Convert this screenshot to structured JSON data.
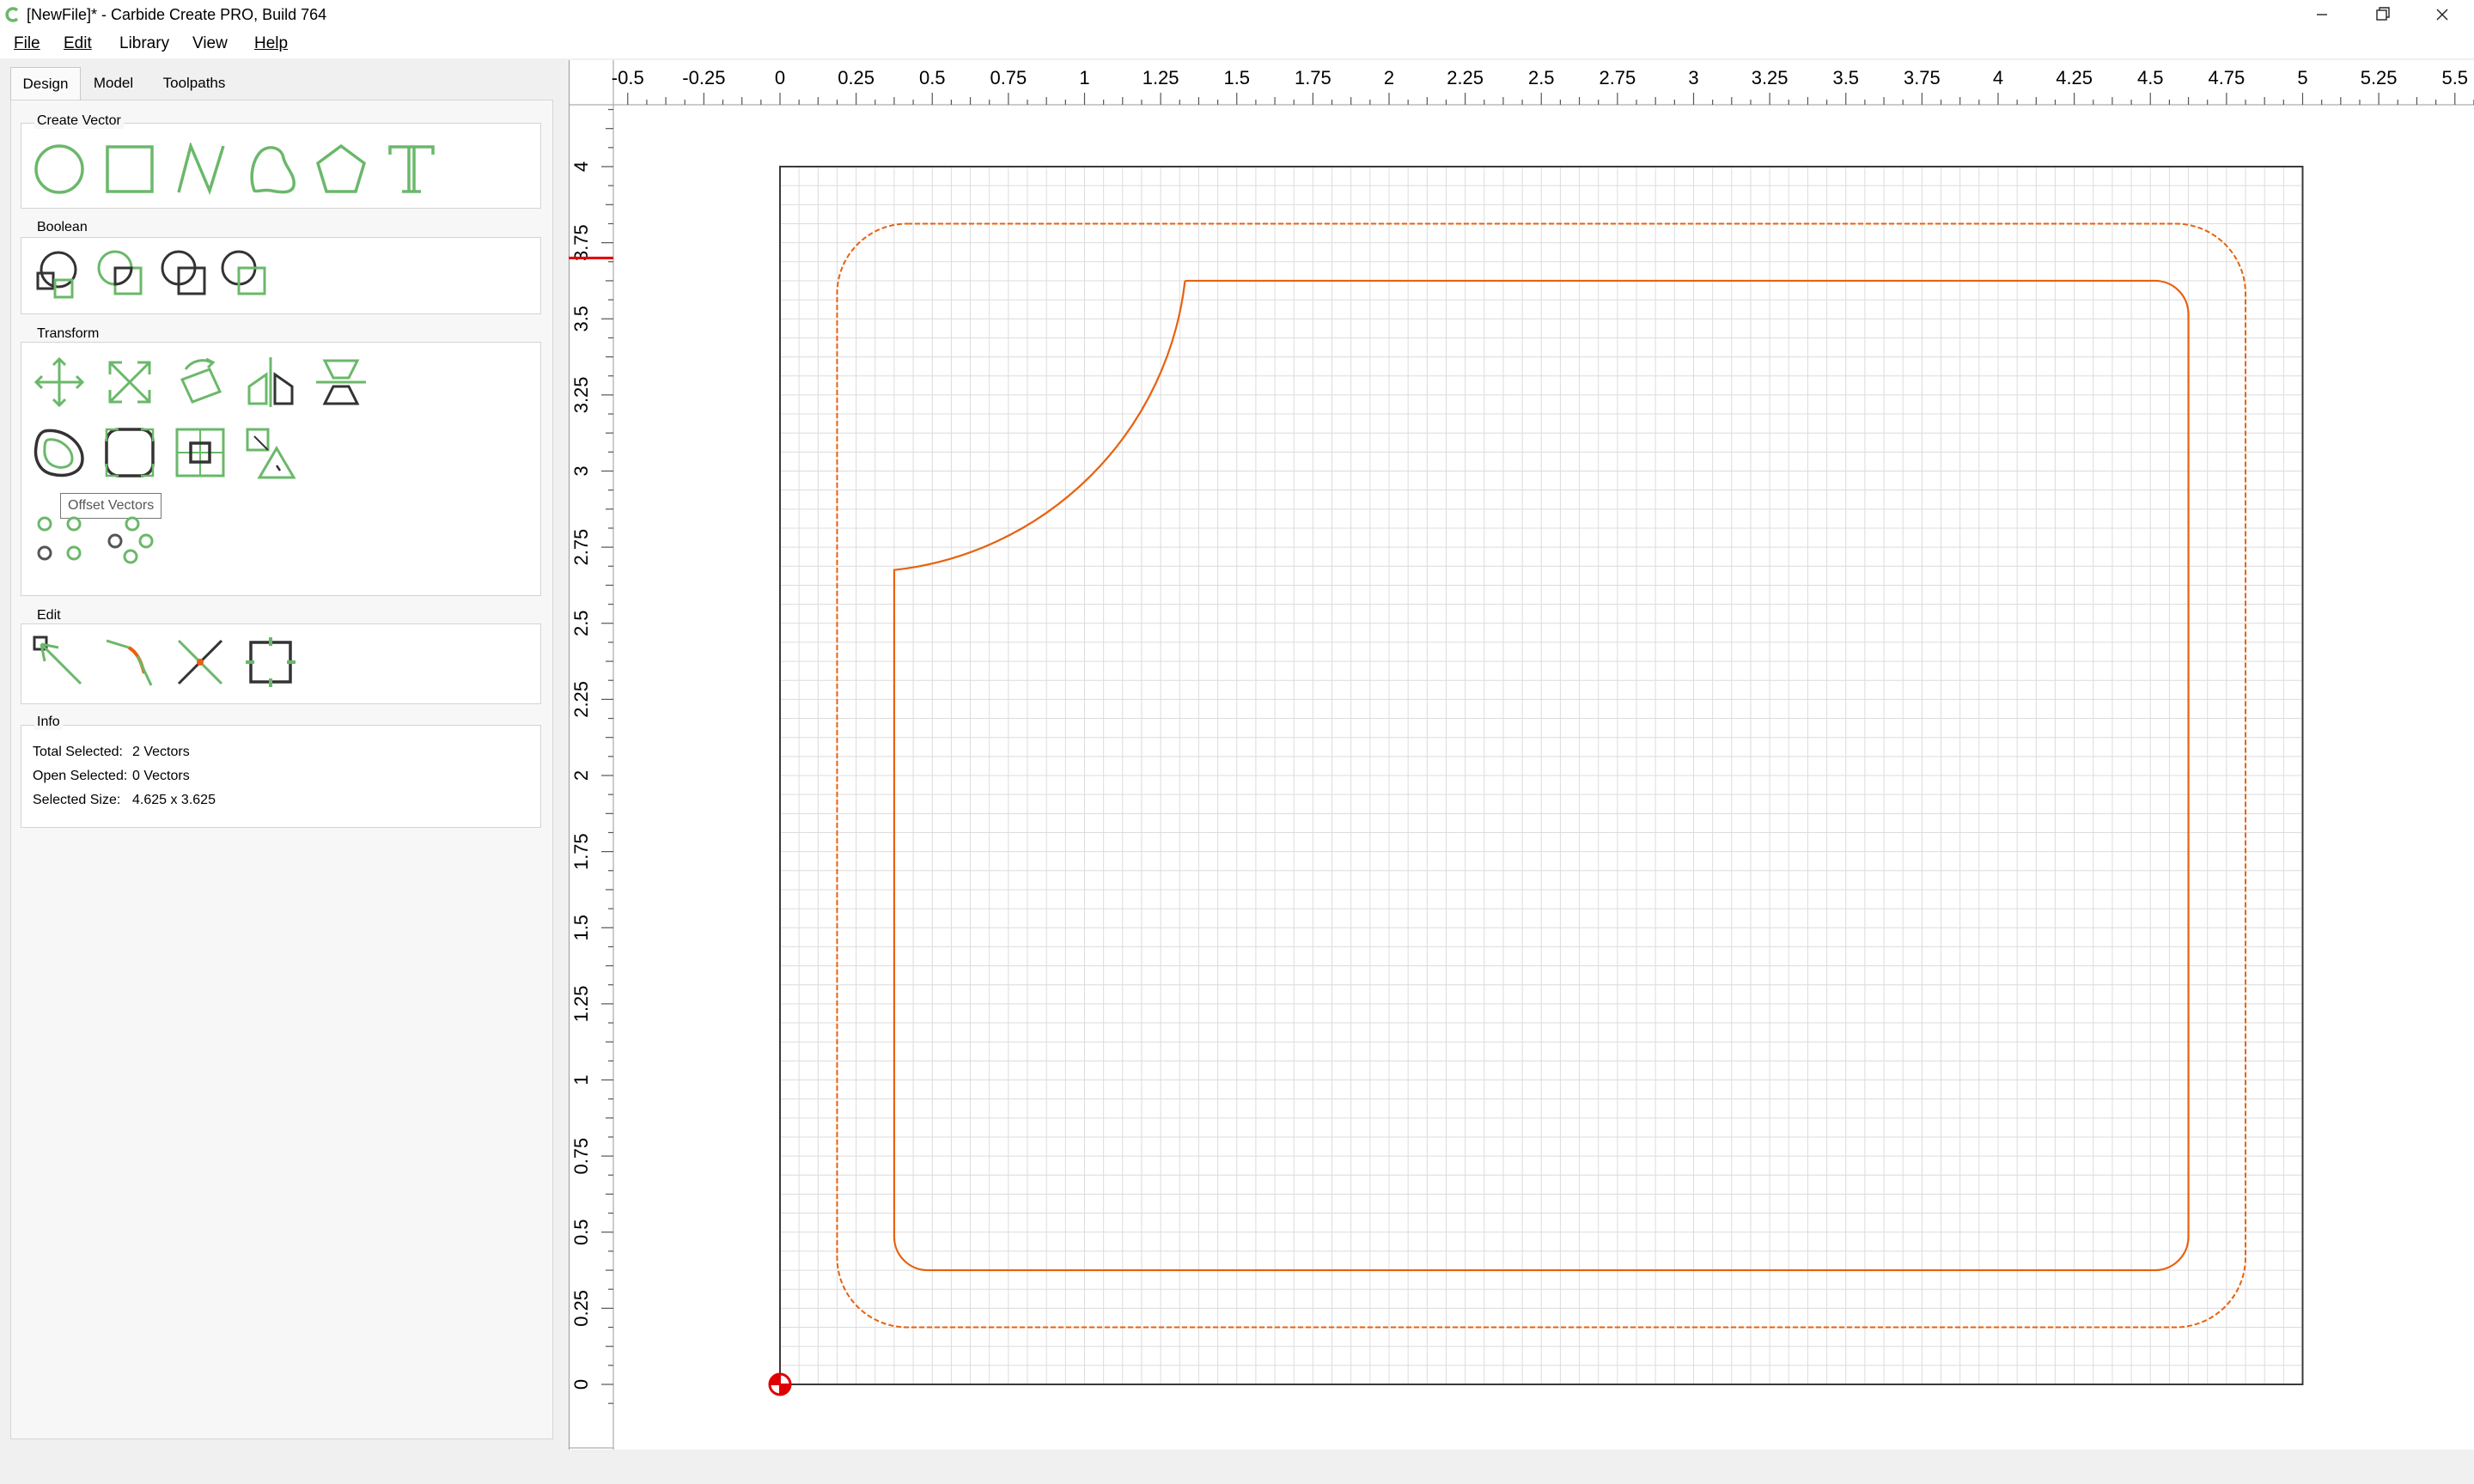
{
  "window": {
    "title": "[NewFile]* - Carbide Create PRO, Build 764",
    "controls": [
      "minimize",
      "restore",
      "close"
    ]
  },
  "menu": [
    {
      "label": "File"
    },
    {
      "label": "Edit"
    },
    {
      "label": "Library"
    },
    {
      "label": "View"
    },
    {
      "label": "Help"
    }
  ],
  "tabs": [
    "Design",
    "Model",
    "Toolpaths"
  ],
  "groups": {
    "create_vector": "Create Vector",
    "boolean": "Boolean",
    "transform": "Transform",
    "edit": "Edit",
    "info": "Info"
  },
  "tooltip": "Offset Vectors",
  "info": {
    "total_selected_label": "Total Selected:",
    "total_selected_value": "2 Vectors",
    "open_selected_label": "Open Selected:",
    "open_selected_value": "0 Vectors",
    "selected_size_label": "Selected Size:",
    "selected_size_value": "4.625 x 3.625"
  },
  "ruler": {
    "x_labels": [
      "-0.5",
      "-0.25",
      "0",
      "0.25",
      "0.5",
      "0.75",
      "1",
      "1.25",
      "1.5",
      "1.75",
      "2",
      "2.25",
      "2.5",
      "2.75",
      "3",
      "3.25",
      "3.5",
      "3.75",
      "4",
      "4.25",
      "4.5",
      "4.75",
      "5",
      "5.25",
      "5.5"
    ],
    "y_labels": [
      "0",
      "0.25",
      "0.5",
      "0.75",
      "1",
      "1.25",
      "1.5",
      "1.75",
      "2",
      "2.25",
      "2.5",
      "2.75",
      "3",
      "3.25",
      "3.5",
      "3.75",
      "4"
    ],
    "cursor_y": 3.7
  },
  "stock": {
    "width": 5,
    "height": 4
  },
  "colors": {
    "accent_green": "#6ab86a",
    "vector_orange": "#e8610c",
    "grid": "#d9d9d9",
    "origin_red": "#e00000"
  }
}
